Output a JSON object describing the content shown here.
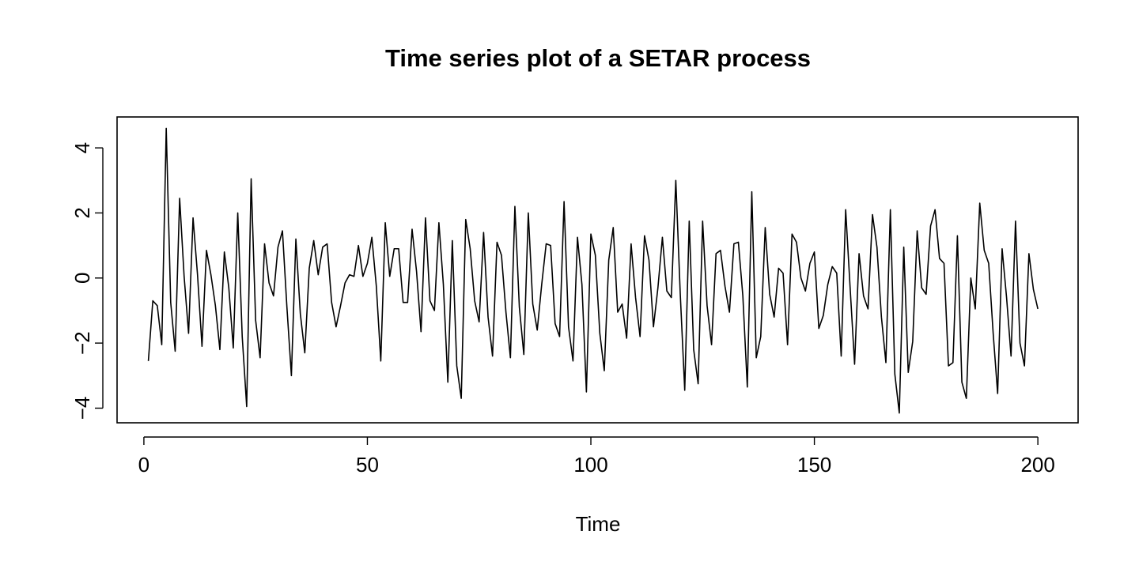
{
  "chart_data": {
    "type": "line",
    "title": "Time series plot of a SETAR process",
    "xlabel": "Time",
    "ylabel": "",
    "xlim": [
      -6,
      209
    ],
    "ylim": [
      -4.45,
      4.95
    ],
    "xticks": [
      0,
      50,
      100,
      150,
      200
    ],
    "yticks": [
      -4,
      -2,
      0,
      2,
      4
    ],
    "xtick_labels": [
      "0",
      "50",
      "100",
      "150",
      "200"
    ],
    "ytick_labels": [
      "−4",
      "−2",
      "0",
      "2",
      "4"
    ],
    "grid": false,
    "series": [
      {
        "color": "#000000",
        "x": [
          1,
          2,
          3,
          4,
          5,
          6,
          7,
          8,
          9,
          10,
          11,
          12,
          13,
          14,
          15,
          16,
          17,
          18,
          19,
          20,
          21,
          22,
          23,
          24,
          25,
          26,
          27,
          28,
          29,
          30,
          31,
          32,
          33,
          34,
          35,
          36,
          37,
          38,
          39,
          40,
          41,
          42,
          43,
          44,
          45,
          46,
          47,
          48,
          49,
          50,
          51,
          52,
          53,
          54,
          55,
          56,
          57,
          58,
          59,
          60,
          61,
          62,
          63,
          64,
          65,
          66,
          67,
          68,
          69,
          70,
          71,
          72,
          73,
          74,
          75,
          76,
          77,
          78,
          79,
          80,
          81,
          82,
          83,
          84,
          85,
          86,
          87,
          88,
          89,
          90,
          91,
          92,
          93,
          94,
          95,
          96,
          97,
          98,
          99,
          100,
          101,
          102,
          103,
          104,
          105,
          106,
          107,
          108,
          109,
          110,
          111,
          112,
          113,
          114,
          115,
          116,
          117,
          118,
          119,
          120,
          121,
          122,
          123,
          124,
          125,
          126,
          127,
          128,
          129,
          130,
          131,
          132,
          133,
          134,
          135,
          136,
          137,
          138,
          139,
          140,
          141,
          142,
          143,
          144,
          145,
          146,
          147,
          148,
          149,
          150,
          151,
          152,
          153,
          154,
          155,
          156,
          157,
          158,
          159,
          160,
          161,
          162,
          163,
          164,
          165,
          166,
          167,
          168,
          169,
          170,
          171,
          172,
          173,
          174,
          175,
          176,
          177,
          178,
          179,
          180,
          181,
          182,
          183,
          184,
          185,
          186,
          187,
          188,
          189,
          190,
          191,
          192,
          193,
          194,
          195,
          196,
          197,
          198,
          199,
          200
        ],
        "y": [
          -2.55,
          -0.7,
          -0.85,
          -2.05,
          4.6,
          -0.75,
          -2.25,
          2.45,
          0.05,
          -1.7,
          1.85,
          0.1,
          -2.1,
          0.85,
          0.1,
          -0.85,
          -2.2,
          0.8,
          -0.3,
          -2.15,
          2.0,
          -1.8,
          -3.95,
          3.05,
          -1.3,
          -2.45,
          1.05,
          -0.15,
          -0.55,
          0.95,
          1.45,
          -0.9,
          -3.0,
          1.2,
          -1.1,
          -2.3,
          0.3,
          1.15,
          0.1,
          0.95,
          1.05,
          -0.75,
          -1.5,
          -0.85,
          -0.15,
          0.1,
          0.05,
          1.0,
          0.05,
          0.45,
          1.25,
          -0.25,
          -2.55,
          1.7,
          0.05,
          0.9,
          0.9,
          -0.75,
          -0.75,
          1.5,
          0.2,
          -1.65,
          1.85,
          -0.7,
          -1.0,
          1.7,
          -0.2,
          -3.2,
          1.15,
          -2.7,
          -3.7,
          1.8,
          0.9,
          -0.7,
          -1.35,
          1.4,
          -1.2,
          -2.4,
          1.1,
          0.7,
          -1.05,
          -2.45,
          2.2,
          -0.9,
          -2.35,
          2.0,
          -0.8,
          -1.6,
          -0.2,
          1.05,
          1.0,
          -1.4,
          -1.8,
          2.35,
          -1.5,
          -2.55,
          1.25,
          -0.2,
          -3.5,
          1.35,
          0.7,
          -1.7,
          -2.85,
          0.55,
          1.55,
          -1.05,
          -0.8,
          -1.85,
          1.05,
          -0.6,
          -1.8,
          1.3,
          0.55,
          -1.5,
          -0.3,
          1.25,
          -0.4,
          -0.6,
          3.0,
          -0.5,
          -3.45,
          1.75,
          -2.2,
          -3.25,
          1.75,
          -0.85,
          -2.05,
          0.75,
          0.85,
          -0.25,
          -1.05,
          1.05,
          1.1,
          -0.55,
          -3.35,
          2.65,
          -2.45,
          -1.8,
          1.55,
          -0.5,
          -1.2,
          0.3,
          0.15,
          -2.05,
          1.35,
          1.1,
          0.0,
          -0.4,
          0.45,
          0.8,
          -1.55,
          -1.15,
          -0.2,
          0.35,
          0.15,
          -2.4,
          2.1,
          -0.3,
          -2.65,
          0.75,
          -0.55,
          -0.95,
          1.95,
          0.95,
          -1.2,
          -2.6,
          2.1,
          -2.95,
          -4.15,
          0.95,
          -2.9,
          -1.95,
          1.45,
          -0.3,
          -0.5,
          1.6,
          2.1,
          0.6,
          0.45,
          -2.7,
          -2.6,
          1.3,
          -3.2,
          -3.7,
          0.0,
          -0.95,
          2.3,
          0.85,
          0.45,
          -1.7,
          -3.55,
          0.9,
          -0.6,
          -2.4,
          1.75,
          -2.0,
          -2.7,
          0.75,
          -0.35,
          -0.95
        ]
      }
    ]
  }
}
